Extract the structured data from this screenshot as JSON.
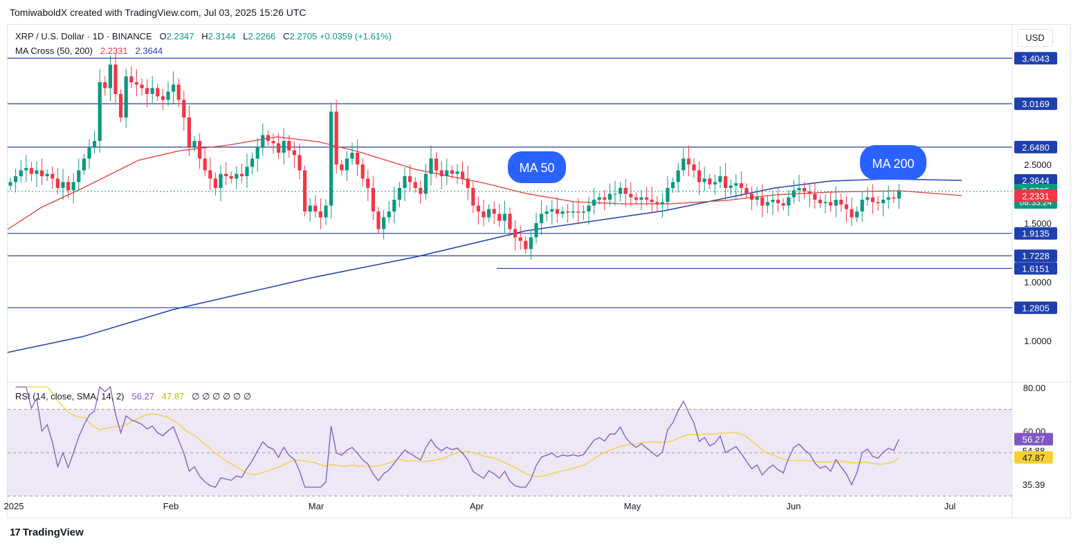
{
  "attribution": "TomiwaboldX created with TradingView.com, Jul 03, 2025 15:26 UTC",
  "currency_button": "USD",
  "legend": {
    "symbol": "XRP / U.S. Dollar · 1D · BINANCE",
    "o_label": "O",
    "o": "2.2347",
    "h_label": "H",
    "h": "2.3144",
    "l_label": "L",
    "l": "2.2266",
    "c_label": "C",
    "c": "2.2705",
    "change": "+0.0359 (+1.61%)",
    "ma_name": "MA Cross (50, 200)",
    "ma50": "2.2331",
    "ma200": "2.3644",
    "rsi_name": "RSI (14, close, SMA, 14, 2)",
    "rsi": "56.27",
    "rsi_ma": "47.87",
    "empty_values": "∅ ∅ ∅ ∅ ∅ ∅"
  },
  "footer": {
    "logo": "17",
    "brand": "TradingView"
  },
  "colors": {
    "up": "#089981",
    "down": "#f23645",
    "ma50": "#e53935",
    "ma200": "#1e3fae",
    "level": "#1e3fae",
    "rsi": "#7e57c2",
    "rsi_ma": "#f5d033",
    "rsi_band": "#ede7f6"
  },
  "chart_data": [
    {
      "type": "candlestick",
      "title": "XRP / U.S. Dollar · 1D · BINANCE",
      "x_labels": [
        "2025",
        "Feb",
        "Mar",
        "Apr",
        "May",
        "Jun",
        "Jul"
      ],
      "y_ticks": [
        1.0,
        1.5,
        2.0,
        2.5
      ],
      "ylim": [
        0.9,
        3.5
      ],
      "horizontal_levels": [
        3.4043,
        3.0169,
        2.648,
        1.9135,
        1.7228,
        1.6151,
        1.2805
      ],
      "price_labels": {
        "levels": [
          "3.4043",
          "3.0169",
          "2.6480",
          "1.9135",
          "1.7228",
          "1.6151",
          "1.2805"
        ],
        "axis_ticks": [
          "2.5000",
          "1.5000",
          "1.0000"
        ],
        "ma200": "2.3644",
        "current": "2.2705",
        "countdown": "08:33:24",
        "ma50": "2.2331"
      },
      "annotations": [
        "MA 50",
        "MA 200"
      ],
      "series": [
        {
          "name": "XRP / U.S. Dollar",
          "close": [
            2.35,
            2.4,
            2.45,
            2.47,
            2.42,
            2.45,
            2.4,
            2.42,
            2.38,
            2.3,
            2.35,
            2.28,
            2.35,
            2.45,
            2.55,
            2.65,
            2.7,
            3.2,
            3.15,
            3.35,
            3.1,
            2.9,
            3.25,
            3.2,
            3.18,
            3.15,
            3.1,
            3.15,
            3.08,
            3.05,
            3.12,
            3.18,
            3.05,
            2.9,
            2.65,
            2.7,
            2.55,
            2.45,
            2.38,
            2.3,
            2.42,
            2.4,
            2.38,
            2.42,
            2.4,
            2.48,
            2.55,
            2.65,
            2.75,
            2.7,
            2.68,
            2.6,
            2.7,
            2.62,
            2.58,
            2.45,
            2.1,
            2.15,
            2.1,
            2.05,
            2.15,
            2.95,
            2.5,
            2.45,
            2.55,
            2.6,
            2.5,
            2.38,
            2.3,
            2.1,
            1.95,
            2.05,
            2.1,
            2.2,
            2.3,
            2.4,
            2.35,
            2.3,
            2.25,
            2.42,
            2.55,
            2.45,
            2.4,
            2.45,
            2.42,
            2.44,
            2.38,
            2.3,
            2.15,
            2.1,
            2.05,
            2.12,
            2.08,
            2.02,
            2.08,
            1.95,
            1.88,
            1.85,
            1.78,
            1.88,
            2.0,
            2.08,
            2.1,
            2.12,
            2.08,
            2.1,
            2.09,
            2.1,
            2.09,
            2.1,
            2.15,
            2.2,
            2.22,
            2.2,
            2.25,
            2.25,
            2.3,
            2.25,
            2.22,
            2.2,
            2.22,
            2.2,
            2.18,
            2.16,
            2.18,
            2.3,
            2.35,
            2.45,
            2.55,
            2.5,
            2.45,
            2.35,
            2.38,
            2.33,
            2.35,
            2.4,
            2.3,
            2.32,
            2.34,
            2.3,
            2.25,
            2.2,
            2.22,
            2.15,
            2.18,
            2.2,
            2.17,
            2.15,
            2.22,
            2.28,
            2.3,
            2.27,
            2.25,
            2.2,
            2.17,
            2.18,
            2.15,
            2.2,
            2.16,
            2.12,
            2.05,
            2.1,
            2.2,
            2.22,
            2.18,
            2.17,
            2.2,
            2.22,
            2.21,
            2.27
          ]
        },
        {
          "name": "MA 50",
          "value": 2.2331
        },
        {
          "name": "MA 200",
          "value": 2.3644
        }
      ]
    },
    {
      "type": "line",
      "title": "RSI (14, close, SMA, 14, 2)",
      "y_ticks": [
        80.0,
        60.0
      ],
      "ylim": [
        30,
        80
      ],
      "price_labels": {
        "rsi": "56.27",
        "mid": "54.88",
        "rsi_ma": "47.87",
        "low": "35.39"
      },
      "series": [
        {
          "name": "RSI",
          "value": 56.27
        },
        {
          "name": "RSI SMA",
          "value": 47.87
        }
      ]
    }
  ]
}
